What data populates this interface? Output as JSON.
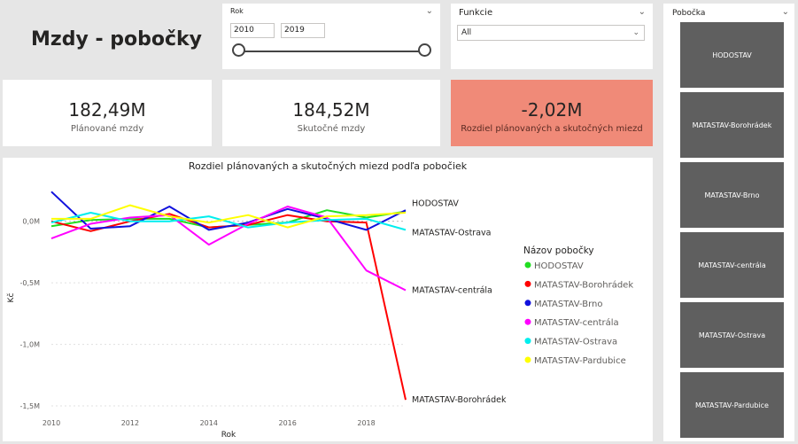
{
  "page_title": "Mzdy - pobočky",
  "year_slicer": {
    "label": "Rok",
    "from": "2010",
    "to": "2019"
  },
  "function_slicer": {
    "label": "Funkcie",
    "value": "All"
  },
  "kpis": [
    {
      "value": "182,49M",
      "label": "Plánované mzdy"
    },
    {
      "value": "184,52M",
      "label": "Skutočné mzdy"
    },
    {
      "value": "-2,02M",
      "label": "Rozdiel plánovaných a skutočných miezd"
    }
  ],
  "colors": {
    "kpi_highlight": "#f08a78",
    "tile": "#5f5f5f",
    "background": "#e6e6e6"
  },
  "branch_slicer": {
    "label": "Pobočka",
    "items": [
      "HODOSTAV",
      "MATASTAV-Borohrádek",
      "MATASTAV-Brno",
      "MATASTAV-centrála",
      "MATASTAV-Ostrava",
      "MATASTAV-Pardubice"
    ]
  },
  "chart_data": {
    "type": "line",
    "title": "Rozdiel plánovaných a skutočných miezd podľa pobočiek",
    "xlabel": "Rok",
    "ylabel": "Kč",
    "x": [
      2010,
      2011,
      2012,
      2013,
      2014,
      2015,
      2016,
      2017,
      2018,
      2019
    ],
    "xticks": [
      "2010",
      "2012",
      "2014",
      "2016",
      "2018"
    ],
    "yticks": [
      {
        "value": 0,
        "label": "0,0M"
      },
      {
        "value": -0.5,
        "label": "-0,5M"
      },
      {
        "value": -1.0,
        "label": "-1,0M"
      },
      {
        "value": -1.5,
        "label": "-1,5M"
      }
    ],
    "ylim": [
      -1.55,
      0.3
    ],
    "legend_title": "Názov pobočky",
    "legend_position": "right",
    "series": [
      {
        "name": "HODOSTAV",
        "color": "#22dd22",
        "values": [
          -0.04,
          0.01,
          0.02,
          0.02,
          -0.05,
          -0.03,
          -0.01,
          0.09,
          0.03,
          0.08
        ]
      },
      {
        "name": "MATASTAV-Borohrádek",
        "color": "#ff0000",
        "values": [
          0.0,
          -0.08,
          0.0,
          0.06,
          -0.05,
          -0.03,
          0.05,
          0.0,
          -0.01,
          -1.45
        ]
      },
      {
        "name": "MATASTAV-Brno",
        "color": "#1111dd",
        "values": [
          0.24,
          -0.06,
          -0.04,
          0.12,
          -0.07,
          -0.01,
          0.1,
          0.02,
          -0.07,
          0.09
        ]
      },
      {
        "name": "MATASTAV-centrála",
        "color": "#ff00ff",
        "values": [
          -0.14,
          -0.02,
          0.03,
          0.05,
          -0.19,
          -0.02,
          0.12,
          0.03,
          -0.4,
          -0.56
        ]
      },
      {
        "name": "MATASTAV-Ostrava",
        "color": "#00eeee",
        "values": [
          -0.01,
          0.07,
          0.0,
          0.0,
          0.04,
          -0.05,
          -0.01,
          0.01,
          0.02,
          -0.07
        ]
      },
      {
        "name": "MATASTAV-Pardubice",
        "color": "#ffff00",
        "values": [
          0.02,
          0.02,
          0.13,
          0.04,
          -0.01,
          0.05,
          -0.05,
          0.04,
          0.05,
          0.07
        ]
      }
    ],
    "end_labels": [
      "HODOSTAV",
      "MATASTAV-Ostrava",
      "MATASTAV-centrála",
      "MATASTAV-Borohrádek"
    ],
    "grid": true
  }
}
